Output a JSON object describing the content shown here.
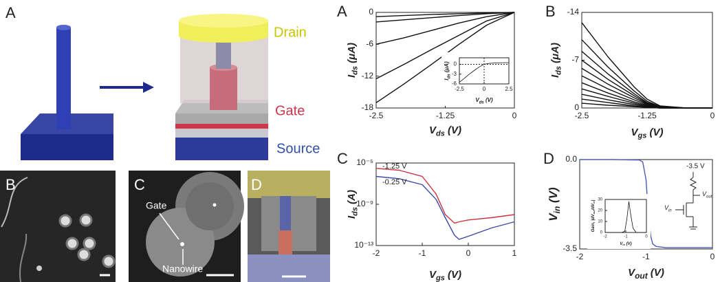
{
  "illustration": {
    "panel": "A",
    "drain": "Drain",
    "gate": "Gate",
    "source": "Source"
  },
  "micrographs": [
    {
      "panel": "B"
    },
    {
      "panel": "C",
      "labels": [
        "Gate",
        "Nanowire"
      ]
    },
    {
      "panel": "D"
    }
  ],
  "chart_data": [
    {
      "type": "line",
      "panel": "A",
      "color": "#111",
      "xlabel": [
        "V",
        "ds",
        " (V)"
      ],
      "ylabel": [
        "I",
        "ds",
        " (μA)"
      ],
      "x": [
        -2.5,
        -2,
        -1.5,
        -1,
        -0.5,
        0
      ],
      "series": [
        {
          "values": [
            -0.8,
            -0.6,
            -0.4,
            -0.25,
            -0.1,
            0
          ]
        },
        {
          "values": [
            -1.8,
            -1.4,
            -1,
            -0.6,
            -0.25,
            0
          ]
        },
        {
          "values": [
            -6,
            -4.8,
            -3.4,
            -2,
            -0.8,
            0
          ]
        },
        {
          "values": [
            -12.5,
            -9.8,
            -7,
            -4.3,
            -1.6,
            0
          ]
        },
        {
          "values": [
            -17,
            -13.5,
            -9.8,
            -6,
            -2.4,
            0
          ]
        }
      ],
      "xlim": [
        -2.5,
        0
      ],
      "ylim": [
        -18,
        0
      ],
      "xticks": [
        -2.5,
        -1.25,
        0
      ],
      "yticks": [
        0,
        -6,
        -12,
        -18
      ],
      "inset": {
        "type": "line",
        "color": "#111",
        "zero_lines": true,
        "xlabel": [
          "V",
          "ds",
          " (V)"
        ],
        "ylabel": [
          "I",
          "ds",
          " (μA)"
        ],
        "x": [
          -2.5,
          -2,
          -1.5,
          -1,
          -0.5,
          0,
          0.5,
          1,
          1.5,
          2,
          2.5
        ],
        "values": [
          -5.5,
          -4.3,
          -3,
          -1.9,
          -0.8,
          0,
          0.3,
          0.4,
          0.45,
          0.5,
          0.5
        ],
        "xlim": [
          -2.5,
          2.5
        ],
        "ylim": [
          -6,
          2
        ],
        "xticks": [
          -2.5,
          0,
          2.5
        ],
        "yticks": [
          0,
          -3,
          -6
        ]
      }
    },
    {
      "type": "line",
      "panel": "B",
      "color": "#111",
      "xlabel": [
        "V",
        "gs",
        " (V)"
      ],
      "ylabel": [
        "I",
        "ds",
        " (μA)"
      ],
      "x": [
        -2.5,
        -2,
        -1.5,
        -1.25,
        -1,
        -0.5,
        0
      ],
      "series": [
        {
          "values": [
            -12.5,
            -7.5,
            -3.1,
            -1.3,
            -0.3,
            0,
            0
          ]
        },
        {
          "values": [
            -10,
            -6,
            -2.5,
            -1,
            -0.2,
            0,
            0
          ]
        },
        {
          "values": [
            -8.3,
            -5,
            -2.1,
            -0.8,
            -0.2,
            0,
            0
          ]
        },
        {
          "values": [
            -7,
            -4.2,
            -1.8,
            -0.7,
            -0.1,
            0,
            0
          ]
        },
        {
          "values": [
            -5.8,
            -3.5,
            -1.5,
            -0.6,
            -0.1,
            0,
            0
          ]
        },
        {
          "values": [
            -4.7,
            -2.8,
            -1.2,
            -0.5,
            -0.1,
            0,
            0
          ]
        },
        {
          "values": [
            -3.7,
            -2.2,
            -0.9,
            -0.4,
            -0.1,
            0,
            0
          ]
        },
        {
          "values": [
            -2.8,
            -1.7,
            -0.7,
            -0.3,
            -0.1,
            0,
            0
          ]
        },
        {
          "values": [
            -2,
            -1.2,
            -0.5,
            -0.2,
            0,
            0,
            0
          ]
        },
        {
          "values": [
            -1.3,
            -0.8,
            -0.3,
            -0.1,
            0,
            0,
            0
          ]
        },
        {
          "values": [
            -0.7,
            -0.4,
            -0.2,
            -0.1,
            0,
            0,
            0
          ]
        }
      ],
      "xlim": [
        -2.5,
        0
      ],
      "ylim": [
        0,
        -14
      ],
      "xticks": [
        -2.5,
        -1.25,
        0
      ],
      "yticks": [
        -14,
        -7,
        0
      ]
    },
    {
      "type": "line",
      "panel": "C",
      "log_y": true,
      "xlabel": [
        "V",
        "gs",
        " (V)"
      ],
      "ylabel": [
        "I",
        "ds",
        " (A)"
      ],
      "x": [
        -2,
        -1.5,
        -1,
        -0.7,
        -0.5,
        -0.3,
        -0.2,
        0,
        0.5,
        1
      ],
      "series": [
        {
          "name": "-1.25 V",
          "color": "#c8333c",
          "values": [
            3e-06,
            2e-06,
            5e-07,
            1e-08,
            1e-10,
            1.5e-11,
            2e-11,
            3e-11,
            5e-11,
            1e-10
          ]
        },
        {
          "name": "-0.25 V",
          "color": "#3a4aa8",
          "values": [
            5e-07,
            3e-07,
            8e-08,
            3e-09,
            5e-11,
            1e-12,
            4e-13,
            8e-13,
            5e-12,
            2e-11
          ]
        }
      ],
      "xlim": [
        -2,
        1
      ],
      "ylim": [
        1e-13,
        1e-05
      ],
      "xticks": [
        -2,
        -1,
        0,
        1
      ],
      "yticks": [
        {
          "value": 1e-05,
          "label": "10⁻⁵"
        },
        {
          "value": 1e-09,
          "label": "10⁻⁹"
        },
        {
          "value": 1e-13,
          "label": "10⁻¹³"
        }
      ]
    },
    {
      "type": "line",
      "panel": "D",
      "color": "#4a5ab8",
      "xlabel": [
        "V",
        "out",
        " (V)"
      ],
      "ylabel": [
        "V",
        "in",
        " (V)"
      ],
      "x": [
        -2,
        -1.5,
        -1.1,
        -1.05,
        -1.0,
        -0.97,
        -0.93,
        -0.9,
        -0.85,
        -0.7,
        -0.3,
        0
      ],
      "values": [
        0,
        0,
        -0.02,
        -0.1,
        -0.8,
        -2,
        -3,
        -3.3,
        -3.4,
        -3.45,
        -3.45,
        -3.45
      ],
      "xlim": [
        -2,
        0
      ],
      "ylim": [
        -3.5,
        0
      ],
      "xticks": [
        -2,
        -1,
        0
      ],
      "yticks": [
        {
          "value": 0,
          "label": "0.0"
        },
        -3.5
      ],
      "annotations": {
        "supply": "-3.5 V",
        "vin": [
          "V",
          "in"
        ],
        "vout": [
          "V",
          "out"
        ]
      },
      "inset": {
        "type": "line",
        "color": "#111",
        "xlabel": [
          "V",
          "in",
          " (V)"
        ],
        "ylabel": [
          "Gain, |dV",
          "out",
          "/dV",
          "in",
          "|"
        ],
        "x": [
          -2,
          -1.2,
          -1.05,
          -0.95,
          -0.85,
          -0.75,
          -0.65,
          -0.5,
          0
        ],
        "values": [
          0,
          0,
          1,
          12,
          28,
          15,
          4,
          0,
          0
        ],
        "xlim": [
          -2,
          0
        ],
        "ylim": [
          0,
          30
        ],
        "xticks": [
          -2,
          -1,
          0
        ],
        "yticks": [
          0,
          10,
          20,
          30
        ]
      }
    }
  ]
}
